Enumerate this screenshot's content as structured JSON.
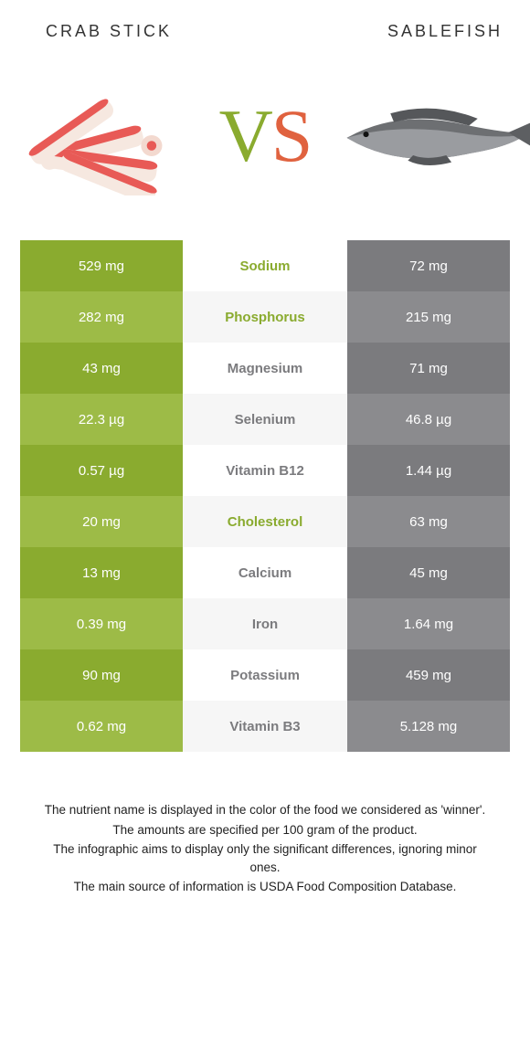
{
  "titles": {
    "left": "Crab stick",
    "right": "Sablefish"
  },
  "vs": {
    "v": "V",
    "s": "S"
  },
  "colors": {
    "left_primary": "#8aab2f",
    "left_alt": "#9dbb47",
    "right_primary": "#7b7b7e",
    "right_alt": "#8b8b8e",
    "mid_alt_bg": "#f6f6f6",
    "vs_v": "#8aab2f",
    "vs_s": "#e0623f"
  },
  "rows": [
    {
      "left": "529 mg",
      "label": "Sodium",
      "right": "72 mg",
      "winner": "left"
    },
    {
      "left": "282 mg",
      "label": "Phosphorus",
      "right": "215 mg",
      "winner": "left"
    },
    {
      "left": "43 mg",
      "label": "Magnesium",
      "right": "71 mg",
      "winner": "right"
    },
    {
      "left": "22.3 µg",
      "label": "Selenium",
      "right": "46.8 µg",
      "winner": "right"
    },
    {
      "left": "0.57 µg",
      "label": "Vitamin B12",
      "right": "1.44 µg",
      "winner": "right"
    },
    {
      "left": "20 mg",
      "label": "Cholesterol",
      "right": "63 mg",
      "winner": "left"
    },
    {
      "left": "13 mg",
      "label": "Calcium",
      "right": "45 mg",
      "winner": "right"
    },
    {
      "left": "0.39 mg",
      "label": "Iron",
      "right": "1.64 mg",
      "winner": "right"
    },
    {
      "left": "90 mg",
      "label": "Potassium",
      "right": "459 mg",
      "winner": "right"
    },
    {
      "left": "0.62 mg",
      "label": "Vitamin B3",
      "right": "5.128 mg",
      "winner": "right"
    }
  ],
  "footnotes": [
    "The nutrient name is displayed in the color of the food we considered as 'winner'.",
    "The amounts are specified per 100 gram of the product.",
    "The infographic aims to display only the significant differences, ignoring minor ones.",
    "The main source of information is USDA Food Composition Database."
  ]
}
